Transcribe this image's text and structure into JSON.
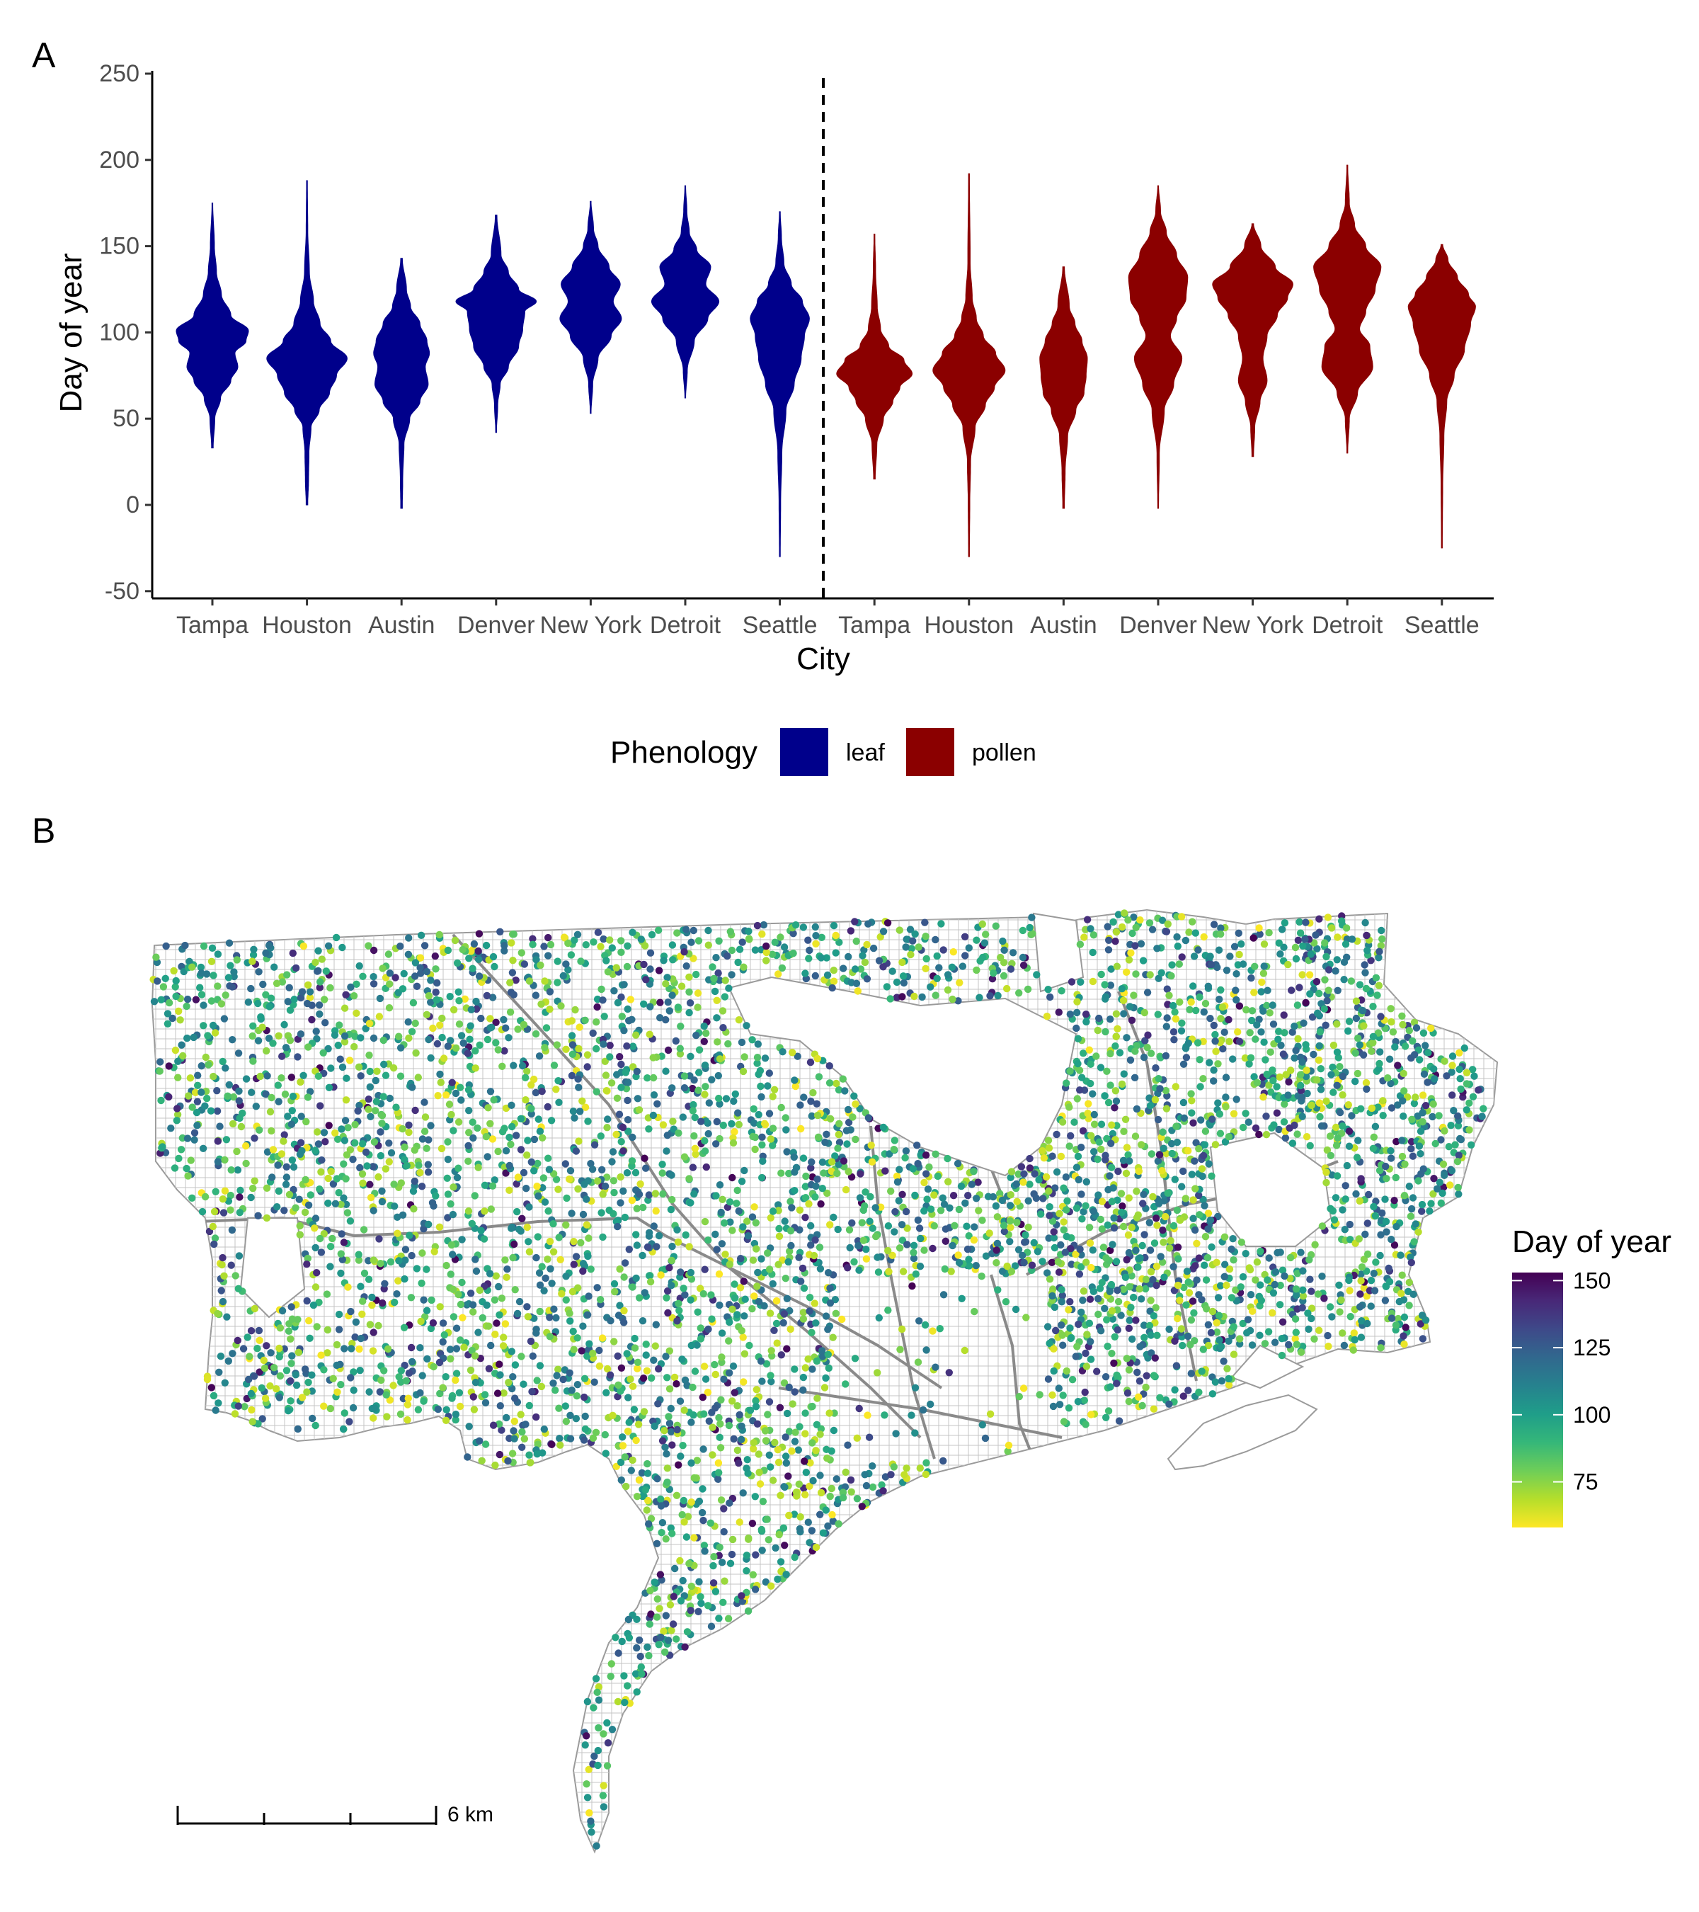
{
  "figure": {
    "panels": [
      "A",
      "B"
    ]
  },
  "chart_data": [
    {
      "type": "violin",
      "panel": "A",
      "xlabel": "City",
      "ylabel": "Day of year",
      "ylim": [
        -50,
        250
      ],
      "yticks": [
        -50,
        0,
        50,
        100,
        150,
        200,
        250
      ],
      "categories": [
        "Tampa",
        "Houston",
        "Austin",
        "Denver",
        "New York",
        "Detroit",
        "Seattle",
        "Tampa",
        "Houston",
        "Austin",
        "Denver",
        "New York",
        "Detroit",
        "Seattle"
      ],
      "divider": "dashed vertical line between leaf and pollen groups",
      "legend": {
        "title": "Phenology",
        "position": "bottom",
        "entries": [
          {
            "label": "leaf",
            "color": "#00008b"
          },
          {
            "label": "pollen",
            "color": "#8b0000"
          }
        ]
      },
      "series": [
        {
          "name": "leaf",
          "color": "#00008b",
          "violins": [
            {
              "city": "Tampa",
              "min": 33,
              "max": 175,
              "profile": [
                [
                  33,
                  0.02
                ],
                [
                  50,
                  0.06
                ],
                [
                  62,
                  0.2
                ],
                [
                  72,
                  0.45
                ],
                [
                  80,
                  0.62
                ],
                [
                  88,
                  0.55
                ],
                [
                  95,
                  0.82
                ],
                [
                  101,
                  0.88
                ],
                [
                  110,
                  0.45
                ],
                [
                  122,
                  0.22
                ],
                [
                  135,
                  0.1
                ],
                [
                  150,
                  0.05
                ],
                [
                  175,
                  0.01
                ]
              ]
            },
            {
              "city": "Houston",
              "min": 0,
              "max": 188,
              "profile": [
                [
                  0,
                  0.02
                ],
                [
                  15,
                  0.04
                ],
                [
                  30,
                  0.05
                ],
                [
                  45,
                  0.1
                ],
                [
                  55,
                  0.3
                ],
                [
                  65,
                  0.55
                ],
                [
                  75,
                  0.72
                ],
                [
                  85,
                  0.98
                ],
                [
                  95,
                  0.58
                ],
                [
                  105,
                  0.32
                ],
                [
                  118,
                  0.16
                ],
                [
                  135,
                  0.06
                ],
                [
                  160,
                  0.02
                ],
                [
                  188,
                  0.01
                ]
              ]
            },
            {
              "city": "Austin",
              "min": -2,
              "max": 143,
              "profile": [
                [
                  -2,
                  0.02
                ],
                [
                  15,
                  0.03
                ],
                [
                  35,
                  0.06
                ],
                [
                  50,
                  0.2
                ],
                [
                  60,
                  0.45
                ],
                [
                  70,
                  0.65
                ],
                [
                  80,
                  0.58
                ],
                [
                  88,
                  0.68
                ],
                [
                  95,
                  0.62
                ],
                [
                  105,
                  0.45
                ],
                [
                  115,
                  0.22
                ],
                [
                  125,
                  0.12
                ],
                [
                  143,
                  0.02
                ]
              ]
            },
            {
              "city": "Denver",
              "min": 42,
              "max": 168,
              "profile": [
                [
                  42,
                  0.01
                ],
                [
                  58,
                  0.04
                ],
                [
                  70,
                  0.1
                ],
                [
                  80,
                  0.3
                ],
                [
                  92,
                  0.55
                ],
                [
                  102,
                  0.65
                ],
                [
                  112,
                  0.7
                ],
                [
                  118,
                  0.98
                ],
                [
                  125,
                  0.55
                ],
                [
                  135,
                  0.3
                ],
                [
                  145,
                  0.12
                ],
                [
                  168,
                  0.02
                ]
              ]
            },
            {
              "city": "New York",
              "min": 53,
              "max": 176,
              "profile": [
                [
                  53,
                  0.01
                ],
                [
                  70,
                  0.05
                ],
                [
                  85,
                  0.18
                ],
                [
                  98,
                  0.5
                ],
                [
                  108,
                  0.75
                ],
                [
                  118,
                  0.55
                ],
                [
                  128,
                  0.72
                ],
                [
                  138,
                  0.45
                ],
                [
                  150,
                  0.18
                ],
                [
                  160,
                  0.07
                ],
                [
                  176,
                  0.01
                ]
              ]
            },
            {
              "city": "Detroit",
              "min": 62,
              "max": 185,
              "profile": [
                [
                  62,
                  0.01
                ],
                [
                  78,
                  0.05
                ],
                [
                  95,
                  0.22
                ],
                [
                  108,
                  0.55
                ],
                [
                  118,
                  0.82
                ],
                [
                  128,
                  0.5
                ],
                [
                  138,
                  0.62
                ],
                [
                  148,
                  0.28
                ],
                [
                  158,
                  0.1
                ],
                [
                  170,
                  0.04
                ],
                [
                  185,
                  0.01
                ]
              ]
            },
            {
              "city": "Seattle",
              "min": -30,
              "max": 170,
              "profile": [
                [
                  -30,
                  0.01
                ],
                [
                  0,
                  0.02
                ],
                [
                  30,
                  0.05
                ],
                [
                  55,
                  0.15
                ],
                [
                  70,
                  0.35
                ],
                [
                  85,
                  0.52
                ],
                [
                  98,
                  0.6
                ],
                [
                  108,
                  0.72
                ],
                [
                  118,
                  0.55
                ],
                [
                  128,
                  0.28
                ],
                [
                  140,
                  0.1
                ],
                [
                  155,
                  0.04
                ],
                [
                  170,
                  0.01
                ]
              ]
            }
          ]
        },
        {
          "name": "pollen",
          "color": "#8b0000",
          "violins": [
            {
              "city": "Tampa",
              "min": 15,
              "max": 157,
              "profile": [
                [
                  15,
                  0.02
                ],
                [
                  35,
                  0.06
                ],
                [
                  50,
                  0.22
                ],
                [
                  60,
                  0.45
                ],
                [
                  68,
                  0.62
                ],
                [
                  76,
                  0.92
                ],
                [
                  84,
                  0.72
                ],
                [
                  92,
                  0.35
                ],
                [
                  102,
                  0.15
                ],
                [
                  115,
                  0.07
                ],
                [
                  135,
                  0.03
                ],
                [
                  157,
                  0.01
                ]
              ]
            },
            {
              "city": "Houston",
              "min": -30,
              "max": 192,
              "profile": [
                [
                  -30,
                  0.01
                ],
                [
                  0,
                  0.02
                ],
                [
                  25,
                  0.04
                ],
                [
                  45,
                  0.15
                ],
                [
                  58,
                  0.4
                ],
                [
                  68,
                  0.62
                ],
                [
                  78,
                  0.88
                ],
                [
                  88,
                  0.65
                ],
                [
                  98,
                  0.35
                ],
                [
                  108,
                  0.18
                ],
                [
                  120,
                  0.08
                ],
                [
                  140,
                  0.03
                ],
                [
                  192,
                  0.01
                ]
              ]
            },
            {
              "city": "Austin",
              "min": -2,
              "max": 138,
              "profile": [
                [
                  -2,
                  0.02
                ],
                [
                  20,
                  0.04
                ],
                [
                  40,
                  0.1
                ],
                [
                  55,
                  0.3
                ],
                [
                  65,
                  0.5
                ],
                [
                  75,
                  0.55
                ],
                [
                  85,
                  0.58
                ],
                [
                  95,
                  0.45
                ],
                [
                  105,
                  0.28
                ],
                [
                  115,
                  0.14
                ],
                [
                  138,
                  0.02
                ]
              ]
            },
            {
              "city": "Denver",
              "min": -2,
              "max": 185,
              "profile": [
                [
                  -2,
                  0.01
                ],
                [
                  30,
                  0.03
                ],
                [
                  55,
                  0.15
                ],
                [
                  70,
                  0.38
                ],
                [
                  85,
                  0.58
                ],
                [
                  98,
                  0.3
                ],
                [
                  108,
                  0.45
                ],
                [
                  120,
                  0.68
                ],
                [
                  132,
                  0.72
                ],
                [
                  145,
                  0.45
                ],
                [
                  158,
                  0.2
                ],
                [
                  170,
                  0.06
                ],
                [
                  185,
                  0.01
                ]
              ]
            },
            {
              "city": "New York",
              "min": 28,
              "max": 163,
              "profile": [
                [
                  28,
                  0.02
                ],
                [
                  45,
                  0.05
                ],
                [
                  60,
                  0.18
                ],
                [
                  72,
                  0.35
                ],
                [
                  85,
                  0.25
                ],
                [
                  98,
                  0.35
                ],
                [
                  110,
                  0.6
                ],
                [
                  120,
                  0.85
                ],
                [
                  128,
                  0.98
                ],
                [
                  138,
                  0.55
                ],
                [
                  150,
                  0.2
                ],
                [
                  163,
                  0.02
                ]
              ]
            },
            {
              "city": "Detroit",
              "min": 30,
              "max": 197,
              "profile": [
                [
                  30,
                  0.01
                ],
                [
                  50,
                  0.05
                ],
                [
                  65,
                  0.25
                ],
                [
                  80,
                  0.62
                ],
                [
                  92,
                  0.55
                ],
                [
                  102,
                  0.3
                ],
                [
                  112,
                  0.45
                ],
                [
                  125,
                  0.68
                ],
                [
                  138,
                  0.82
                ],
                [
                  150,
                  0.45
                ],
                [
                  162,
                  0.18
                ],
                [
                  175,
                  0.05
                ],
                [
                  197,
                  0.01
                ]
              ]
            },
            {
              "city": "Seattle",
              "min": -25,
              "max": 151,
              "profile": [
                [
                  -25,
                  0.01
                ],
                [
                  10,
                  0.02
                ],
                [
                  40,
                  0.05
                ],
                [
                  60,
                  0.12
                ],
                [
                  75,
                  0.3
                ],
                [
                  90,
                  0.55
                ],
                [
                  105,
                  0.7
                ],
                [
                  115,
                  0.82
                ],
                [
                  122,
                  0.65
                ],
                [
                  132,
                  0.38
                ],
                [
                  142,
                  0.15
                ],
                [
                  151,
                  0.02
                ]
              ]
            }
          ]
        }
      ]
    },
    {
      "type": "map",
      "panel": "B",
      "colorbar": {
        "title": "Day of year",
        "ticks": [
          150,
          125,
          100,
          75
        ],
        "range": [
          58,
          153
        ],
        "colors": [
          "#fde725",
          "#b5de2b",
          "#6ece58",
          "#35b779",
          "#1f9e89",
          "#26828e",
          "#31688e",
          "#3e4989",
          "#482878",
          "#440154"
        ]
      },
      "scalebar": {
        "label": "6 km"
      },
      "points_description": "street trees colored by day of year across a city street network"
    }
  ]
}
